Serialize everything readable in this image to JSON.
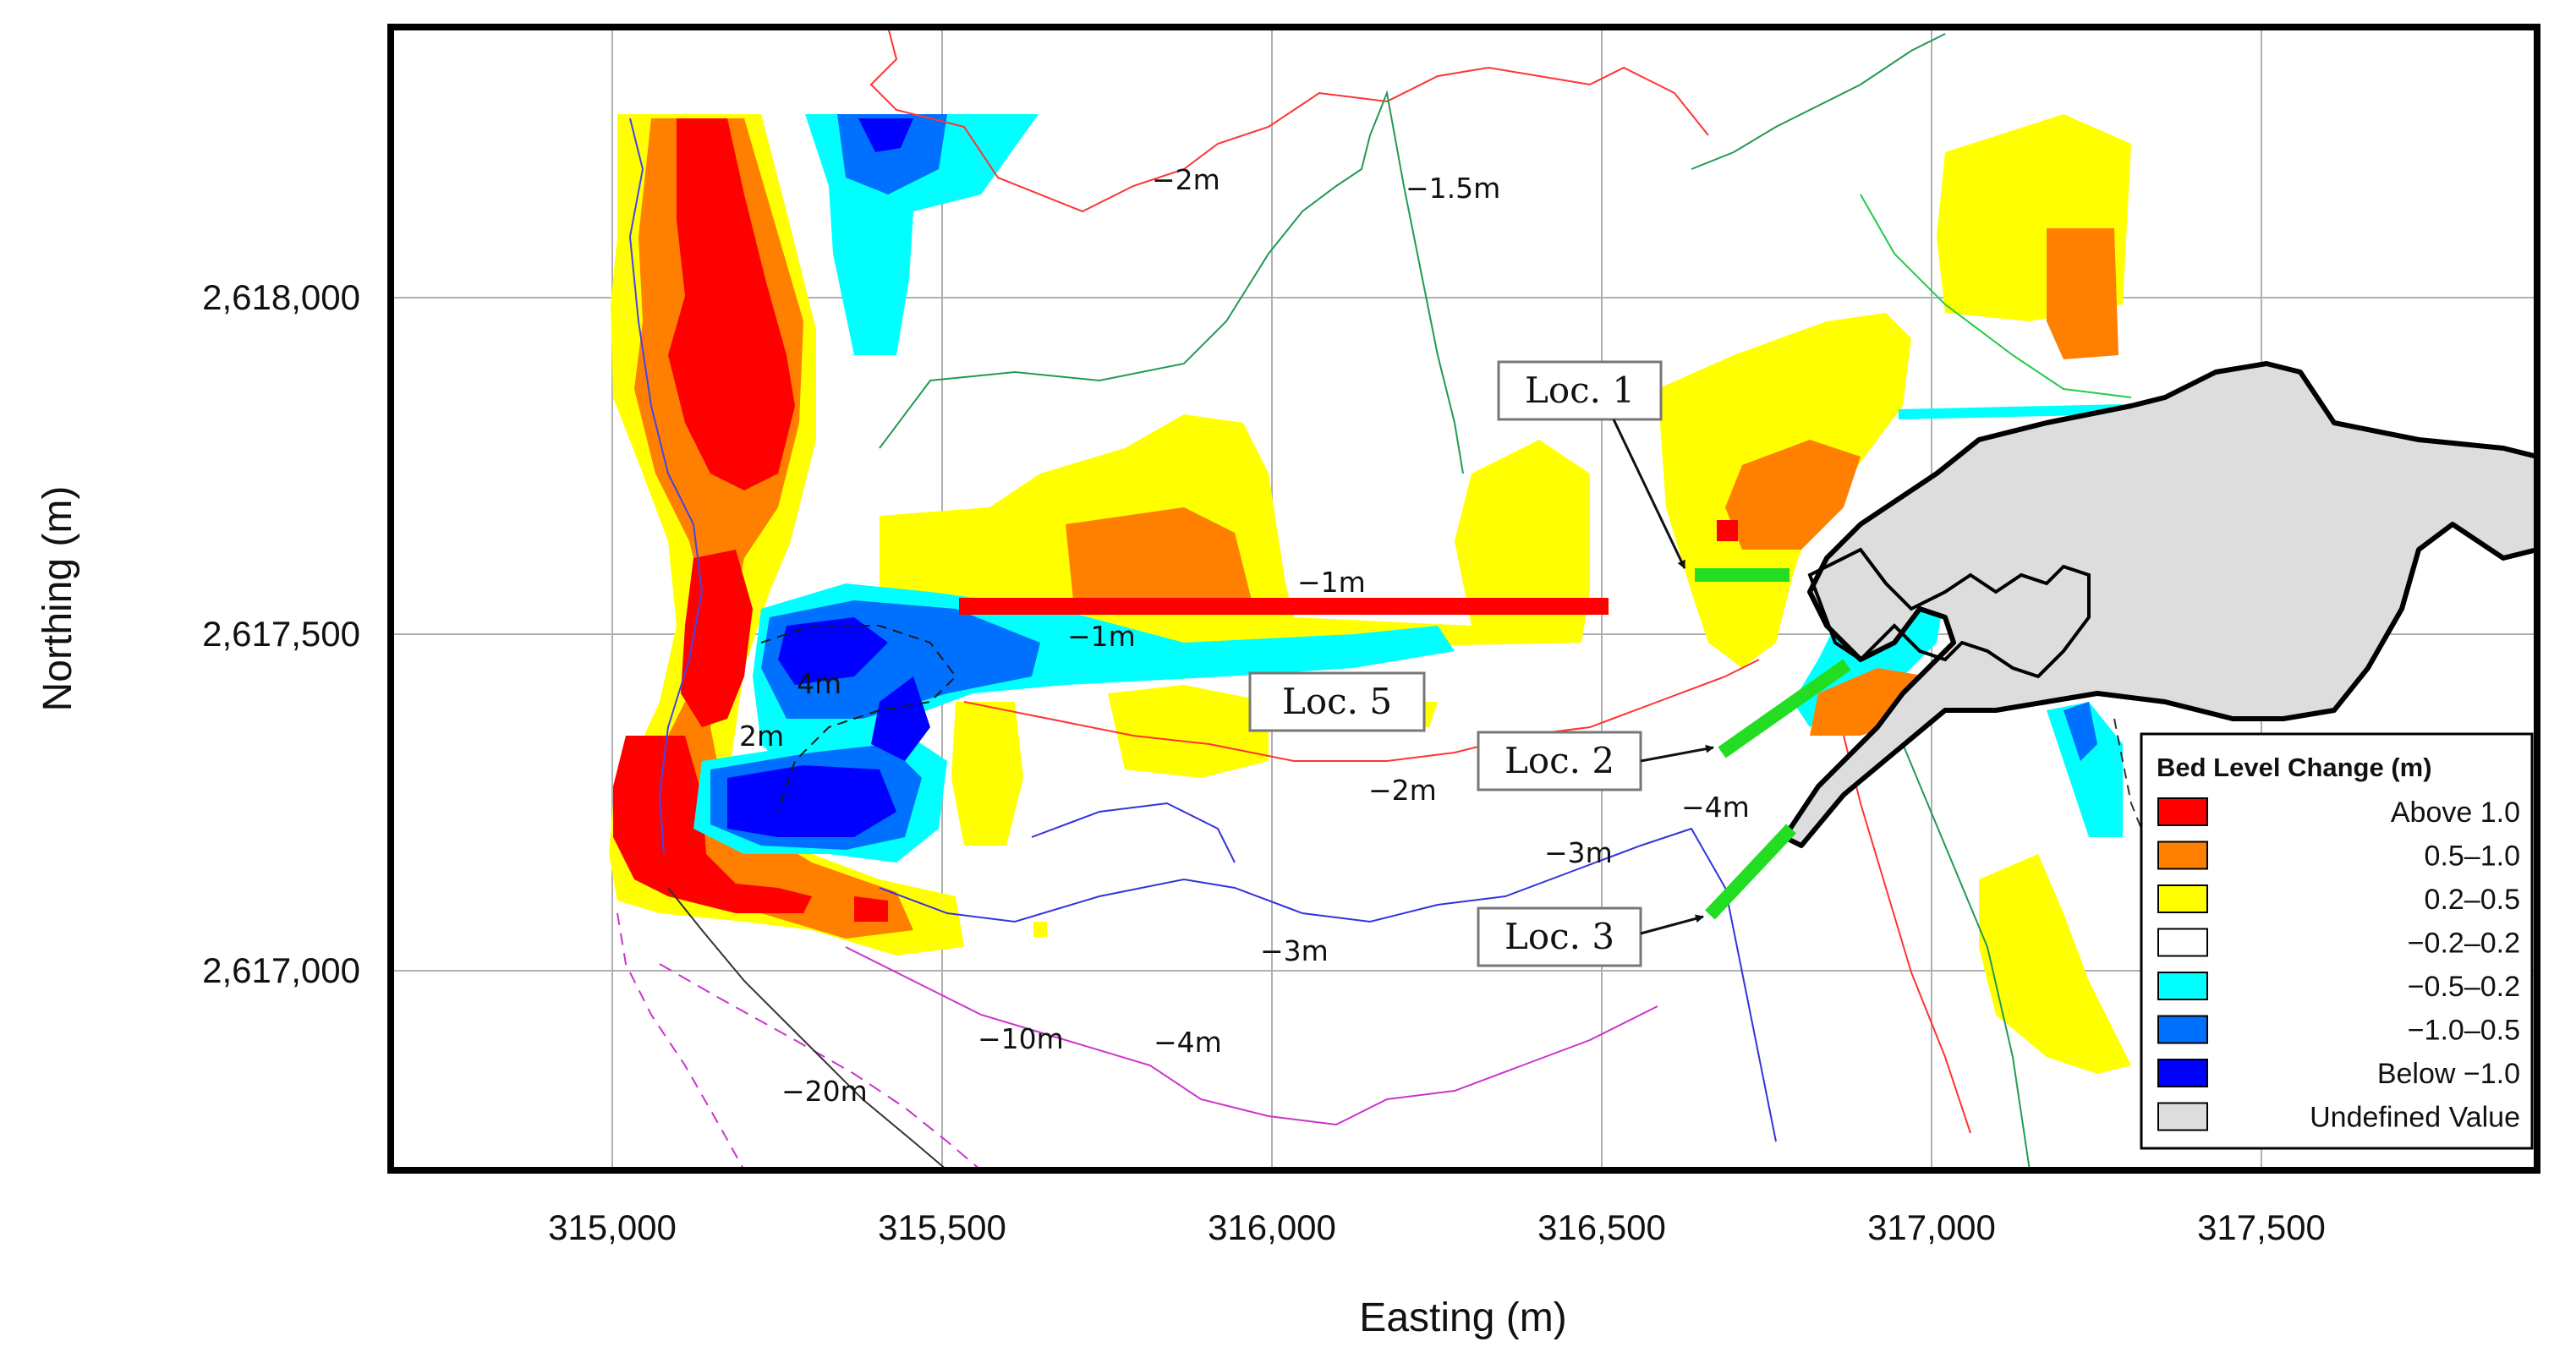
{
  "axes": {
    "x_title": "Easting (m)",
    "y_title": "Northing (m)",
    "x_ticks": [
      "315,000",
      "315,500",
      "316,000",
      "316,500",
      "317,000",
      "317,500"
    ],
    "y_ticks": [
      "2,618,000",
      "2,617,500",
      "2,617,000"
    ]
  },
  "depth_labels": [
    "−2m",
    "−1.5m",
    "−1m",
    "−1m",
    "4m",
    "2m",
    "−2m",
    "−4m",
    "−3m",
    "−3m",
    "−10m",
    "−4m",
    "−20m"
  ],
  "locations": [
    "Loc. 1",
    "Loc. 2",
    "Loc. 3",
    "Loc. 5"
  ],
  "legend": {
    "title": "Bed Level Change (m)",
    "items": [
      {
        "label": "Above 1.0",
        "color": "#ff0000"
      },
      {
        "label": "0.5–1.0",
        "color": "#ff7f00"
      },
      {
        "label": "0.2–0.5",
        "color": "#ffff00"
      },
      {
        "label": "−0.2–0.2",
        "color": "#ffffff"
      },
      {
        "label": "−0.5–0.2",
        "color": "#00ffff"
      },
      {
        "label": "−1.0–0.5",
        "color": "#0070ff"
      },
      {
        "label": "Below −1.0",
        "color": "#0000ff"
      },
      {
        "label": "Undefined Value",
        "color": "#dddddd"
      }
    ]
  },
  "colors": {
    "land": "#dddddd",
    "loc5_line": "#ff0000",
    "loc_lines": "#22dd22"
  }
}
